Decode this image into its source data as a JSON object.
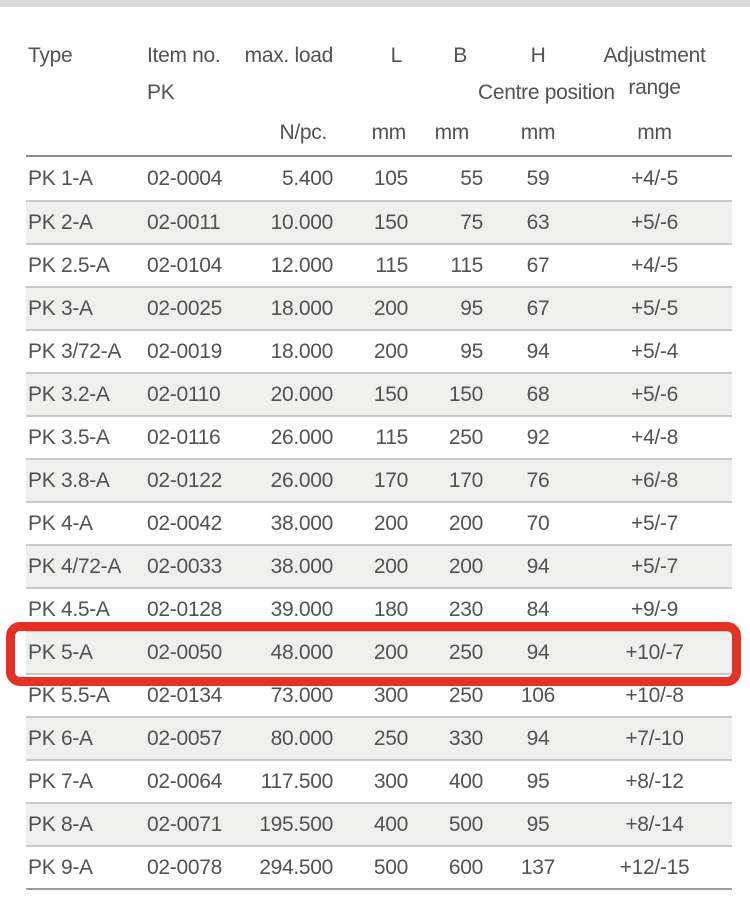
{
  "table": {
    "columns": [
      {
        "key": "type",
        "label": "Type",
        "sub": "",
        "unit": ""
      },
      {
        "key": "item_no",
        "label": "Item no.",
        "sub": "PK",
        "unit": ""
      },
      {
        "key": "max_load",
        "label": "max. load",
        "sub": "",
        "unit": "N/pc."
      },
      {
        "key": "l",
        "label": "L",
        "sub": "",
        "unit": "mm"
      },
      {
        "key": "b",
        "label": "B",
        "sub": "",
        "unit": "mm"
      },
      {
        "key": "h",
        "label": "H",
        "sub": "Centre position",
        "unit": "mm"
      },
      {
        "key": "adjustment_range",
        "label": "Adjustment range",
        "sub": "",
        "unit": "mm"
      }
    ],
    "rows": [
      {
        "type": "PK 1-A",
        "item_no": "02-0004",
        "max_load": "5.400",
        "l": "105",
        "b": "55",
        "h": "59",
        "adjustment_range": "+4/-5",
        "highlighted": false
      },
      {
        "type": "PK 2-A",
        "item_no": "02-0011",
        "max_load": "10.000",
        "l": "150",
        "b": "75",
        "h": "63",
        "adjustment_range": "+5/-6",
        "highlighted": false
      },
      {
        "type": "PK 2.5-A",
        "item_no": "02-0104",
        "max_load": "12.000",
        "l": "115",
        "b": "115",
        "h": "67",
        "adjustment_range": "+4/-5",
        "highlighted": false
      },
      {
        "type": "PK 3-A",
        "item_no": "02-0025",
        "max_load": "18.000",
        "l": "200",
        "b": "95",
        "h": "67",
        "adjustment_range": "+5/-5",
        "highlighted": false
      },
      {
        "type": "PK 3/72-A",
        "item_no": "02-0019",
        "max_load": "18.000",
        "l": "200",
        "b": "95",
        "h": "94",
        "adjustment_range": "+5/-4",
        "highlighted": false
      },
      {
        "type": "PK 3.2-A",
        "item_no": "02-0110",
        "max_load": "20.000",
        "l": "150",
        "b": "150",
        "h": "68",
        "adjustment_range": "+5/-6",
        "highlighted": false
      },
      {
        "type": "PK 3.5-A",
        "item_no": "02-0116",
        "max_load": "26.000",
        "l": "115",
        "b": "250",
        "h": "92",
        "adjustment_range": "+4/-8",
        "highlighted": false
      },
      {
        "type": "PK 3.8-A",
        "item_no": "02-0122",
        "max_load": "26.000",
        "l": "170",
        "b": "170",
        "h": "76",
        "adjustment_range": "+6/-8",
        "highlighted": false
      },
      {
        "type": "PK 4-A",
        "item_no": "02-0042",
        "max_load": "38.000",
        "l": "200",
        "b": "200",
        "h": "70",
        "adjustment_range": "+5/-7",
        "highlighted": false
      },
      {
        "type": "PK 4/72-A",
        "item_no": "02-0033",
        "max_load": "38.000",
        "l": "200",
        "b": "200",
        "h": "94",
        "adjustment_range": "+5/-7",
        "highlighted": false
      },
      {
        "type": "PK 4.5-A",
        "item_no": "02-0128",
        "max_load": "39.000",
        "l": "180",
        "b": "230",
        "h": "84",
        "adjustment_range": "+9/-9",
        "highlighted": false
      },
      {
        "type": "PK 5-A",
        "item_no": "02-0050",
        "max_load": "48.000",
        "l": "200",
        "b": "250",
        "h": "94",
        "adjustment_range": "+10/-7",
        "highlighted": true
      },
      {
        "type": "PK 5.5-A",
        "item_no": "02-0134",
        "max_load": "73.000",
        "l": "300",
        "b": "250",
        "h": "106",
        "adjustment_range": "+10/-8",
        "highlighted": false
      },
      {
        "type": "PK 6-A",
        "item_no": "02-0057",
        "max_load": "80.000",
        "l": "250",
        "b": "330",
        "h": "94",
        "adjustment_range": "+7/-10",
        "highlighted": false
      },
      {
        "type": "PK 7-A",
        "item_no": "02-0064",
        "max_load": "117.500",
        "l": "300",
        "b": "400",
        "h": "95",
        "adjustment_range": "+8/-12",
        "highlighted": false
      },
      {
        "type": "PK 8-A",
        "item_no": "02-0071",
        "max_load": "195.500",
        "l": "400",
        "b": "500",
        "h": "95",
        "adjustment_range": "+8/-14",
        "highlighted": false
      },
      {
        "type": "PK 9-A",
        "item_no": "02-0078",
        "max_load": "294.500",
        "l": "500",
        "b": "600",
        "h": "137",
        "adjustment_range": "+12/-15",
        "highlighted": false
      }
    ],
    "highlighted_row": "PK 5-A",
    "highlight_color": "#e53124",
    "alt_row_color": "#efefee"
  }
}
